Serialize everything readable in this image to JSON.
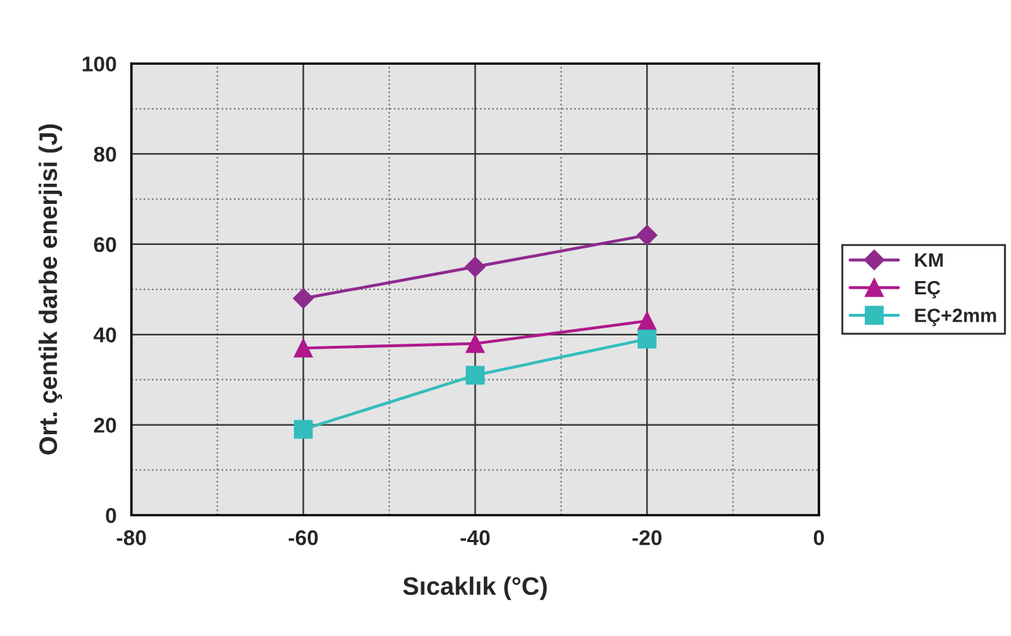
{
  "chart_data": {
    "type": "line",
    "xlabel": "Sıcaklık (°C)",
    "ylabel": "Ort. çentik darbe enerjisi (J)",
    "x": [
      -60,
      -40,
      -20
    ],
    "series": [
      {
        "name": "KM",
        "color": "#8e2a8e",
        "marker": "diamond",
        "values": [
          48,
          55,
          62
        ]
      },
      {
        "name": "EÇ",
        "color": "#b0188c",
        "marker": "triangle",
        "values": [
          37,
          38,
          43
        ]
      },
      {
        "name": "EÇ+2mm",
        "color": "#33bdbd",
        "marker": "square",
        "values": [
          19,
          31,
          39
        ]
      }
    ],
    "xlim": [
      -80,
      0
    ],
    "xticks": [
      -80,
      -60,
      -40,
      -20,
      0
    ],
    "ylim": [
      0,
      100
    ],
    "yticks": [
      0,
      20,
      40,
      60,
      80,
      100
    ],
    "grid": true,
    "legend": "right",
    "line_style": "solid"
  }
}
